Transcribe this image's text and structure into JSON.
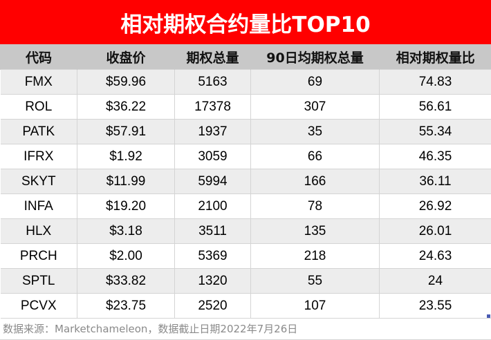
{
  "title": "相对期权合约量比TOP10",
  "colors": {
    "title_bg": "#ff0000",
    "header_bg": "#c8c8c8",
    "row_alt_bg": "#ededed"
  },
  "table": {
    "headers": [
      "代码",
      "收盘价",
      "期权总量",
      "90日均期权总量",
      "相对期权量比"
    ],
    "rows": [
      [
        "FMX",
        "$59.96",
        "5163",
        "69",
        "74.83"
      ],
      [
        "ROL",
        "$36.22",
        "17378",
        "307",
        "56.61"
      ],
      [
        "PATK",
        "$57.91",
        "1937",
        "35",
        "55.34"
      ],
      [
        "IFRX",
        "$1.92",
        "3059",
        "66",
        "46.35"
      ],
      [
        "SKYT",
        "$11.99",
        "5994",
        "166",
        "36.11"
      ],
      [
        "INFA",
        "$19.20",
        "2100",
        "78",
        "26.92"
      ],
      [
        "HLX",
        "$3.18",
        "3511",
        "135",
        "26.01"
      ],
      [
        "PRCH",
        "$2.00",
        "5369",
        "218",
        "24.63"
      ],
      [
        "SPTL",
        "$33.82",
        "1320",
        "55",
        "24"
      ],
      [
        "PCVX",
        "$23.75",
        "2520",
        "107",
        "23.55"
      ]
    ]
  },
  "footer": "数据来源：Marketchameleon，数据截止日期2022年7月26日"
}
